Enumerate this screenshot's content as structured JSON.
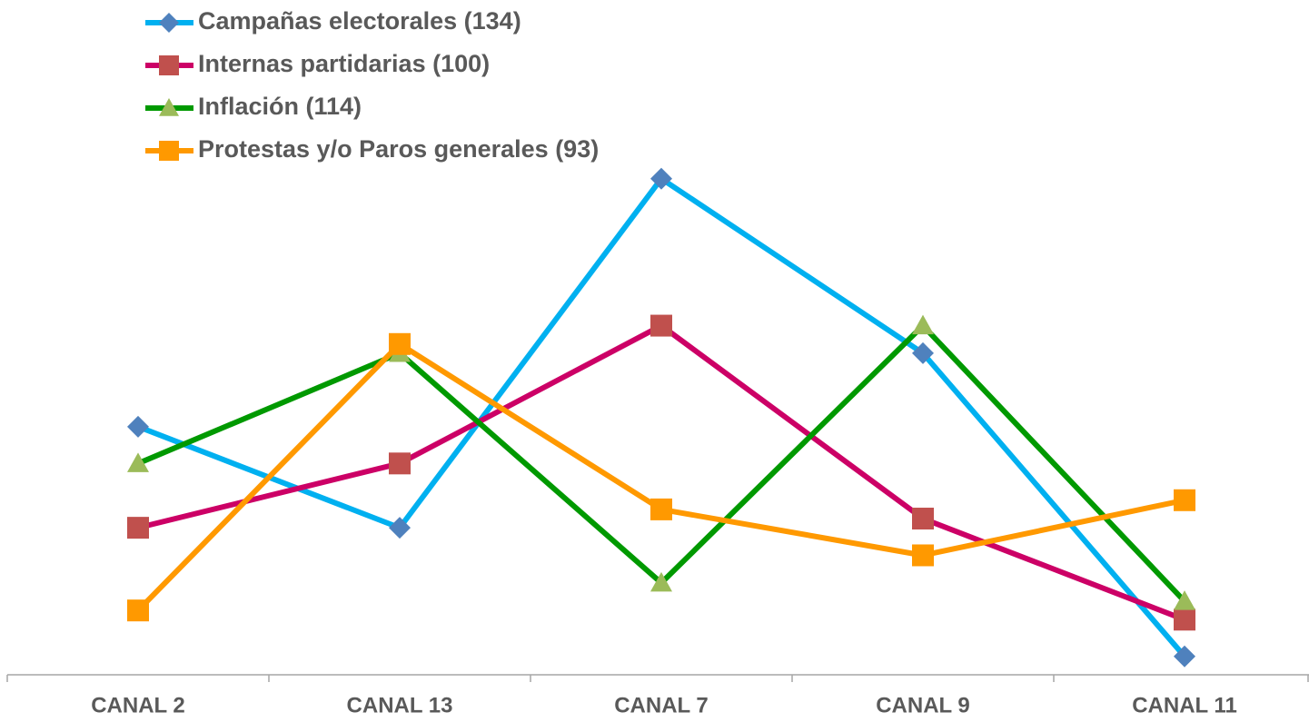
{
  "chart_data": {
    "type": "line",
    "categories": [
      "CANAL 2",
      "CANAL 13",
      "CANAL 7",
      "CANAL 9",
      "CANAL 11"
    ],
    "series": [
      {
        "name": "Campañas electorales (134)",
        "color": "#00b0f0",
        "marker": "diamond",
        "marker_color": "#4f81bd",
        "values": [
          27,
          16,
          54,
          35,
          2
        ]
      },
      {
        "name": "Internas partidarias (100)",
        "color": "#cc0066",
        "marker": "square",
        "marker_color": "#c0504d",
        "values": [
          16,
          23,
          38,
          17,
          6
        ]
      },
      {
        "name": "Inflación (114)",
        "color": "#009900",
        "marker": "triangle",
        "marker_color": "#9bbb59",
        "values": [
          23,
          35,
          10,
          38,
          8
        ]
      },
      {
        "name": "Protestas y/o Paros generales (93)",
        "color": "#ff9900",
        "marker": "square",
        "marker_color": "#ff9900",
        "values": [
          7,
          36,
          18,
          13,
          19
        ]
      }
    ],
    "ylim": [
      0,
      60
    ],
    "legend": "top-left"
  }
}
